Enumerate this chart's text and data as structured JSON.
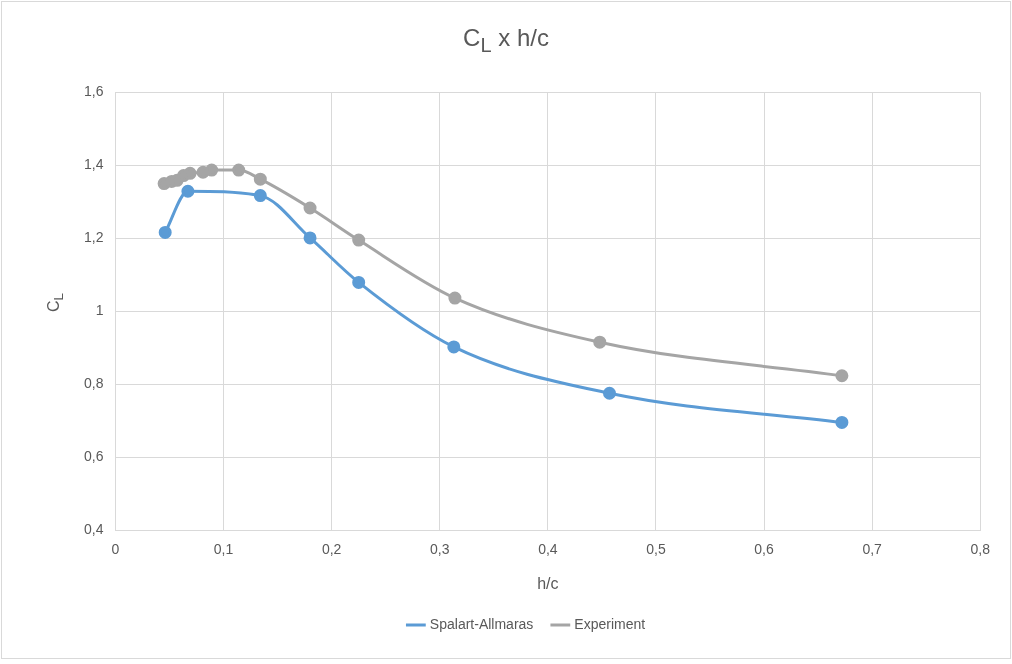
{
  "chart_data": {
    "type": "line",
    "title": "C$_{L}$ x h/c",
    "xlabel": "h/c",
    "ylabel": "C$_{L}$",
    "xlim": [
      0,
      0.8
    ],
    "xticks": [
      0,
      {
        "value": 0.1,
        "label": "0,1"
      },
      {
        "value": 0.2,
        "label": "0,2"
      },
      {
        "value": 0.3,
        "label": "0,3"
      },
      {
        "value": 0.4,
        "label": "0,4"
      },
      {
        "value": 0.5,
        "label": "0,5"
      },
      {
        "value": 0.6,
        "label": "0,6"
      },
      {
        "value": 0.7,
        "label": "0,7"
      },
      {
        "value": 0.8,
        "label": "0,8"
      }
    ],
    "ylim": [
      0.4,
      1.6
    ],
    "yticks": [
      {
        "value": 0.4,
        "label": "0,4"
      },
      {
        "value": 0.6,
        "label": "0,6"
      },
      {
        "value": 0.8,
        "label": "0,8"
      },
      1,
      {
        "value": 1.2,
        "label": "1,2"
      },
      {
        "value": 1.4,
        "label": "1,4"
      },
      {
        "value": 1.6,
        "label": "1,6"
      }
    ],
    "grid": true,
    "legend": "bottom",
    "marker": "circle",
    "line_style": "solid",
    "series": [
      {
        "name": "Spalart-Allmaras",
        "color": "#5b9bd5",
        "x": [
          0.046,
          0.067,
          0.134,
          0.18,
          0.225,
          0.313,
          0.457,
          0.672
        ],
        "values": [
          1.216,
          1.329,
          1.317,
          1.201,
          1.079,
          0.902,
          0.775,
          0.695
        ]
      },
      {
        "name": "Experiment",
        "color": "#a5a5a5",
        "x": [
          0.045,
          0.052,
          0.057,
          0.063,
          0.069,
          0.081,
          0.089,
          0.114,
          0.134,
          0.18,
          0.225,
          0.314,
          0.448,
          0.672
        ],
        "values": [
          1.35,
          1.356,
          1.359,
          1.372,
          1.378,
          1.381,
          1.387,
          1.387,
          1.362,
          1.283,
          1.195,
          1.036,
          0.915,
          0.823
        ]
      }
    ]
  }
}
